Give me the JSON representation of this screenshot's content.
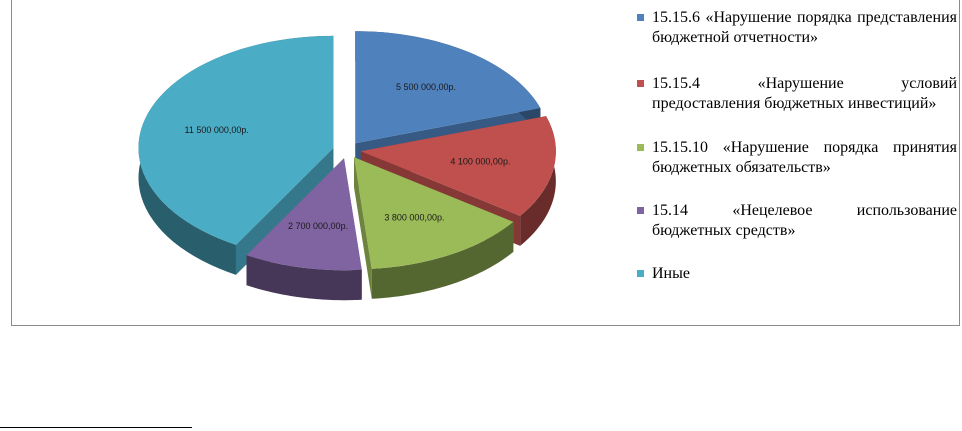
{
  "chart_data": {
    "type": "pie",
    "title": "",
    "slices": [
      {
        "label": "15.15.6 «Нарушение порядка представления бюджетной отчетности»",
        "value": 5500000,
        "value_label": "5 500 000,00р.",
        "color": "#4f81bd"
      },
      {
        "label": "15.15.4 «Нарушение условий предоставления бюджетных инвестиций»",
        "value": 4100000,
        "value_label": "4 100 000,00р.",
        "color": "#c0504d"
      },
      {
        "label": "15.15.10 «Нарушение порядка принятия бюджетных обязательств»",
        "value": 3800000,
        "value_label": "3 800 000,00р.",
        "color": "#9bbb59"
      },
      {
        "label": "15.14 «Нецелевое использование бюджетных средств»",
        "value": 2700000,
        "value_label": "2 700 000,00р.",
        "color": "#8064a2"
      },
      {
        "label": "Иные",
        "value": 11500000,
        "value_label": "11 500 000,00р.",
        "color": "#4bacc6"
      }
    ],
    "legend_position": "right",
    "exploded": true,
    "style": "3d"
  }
}
